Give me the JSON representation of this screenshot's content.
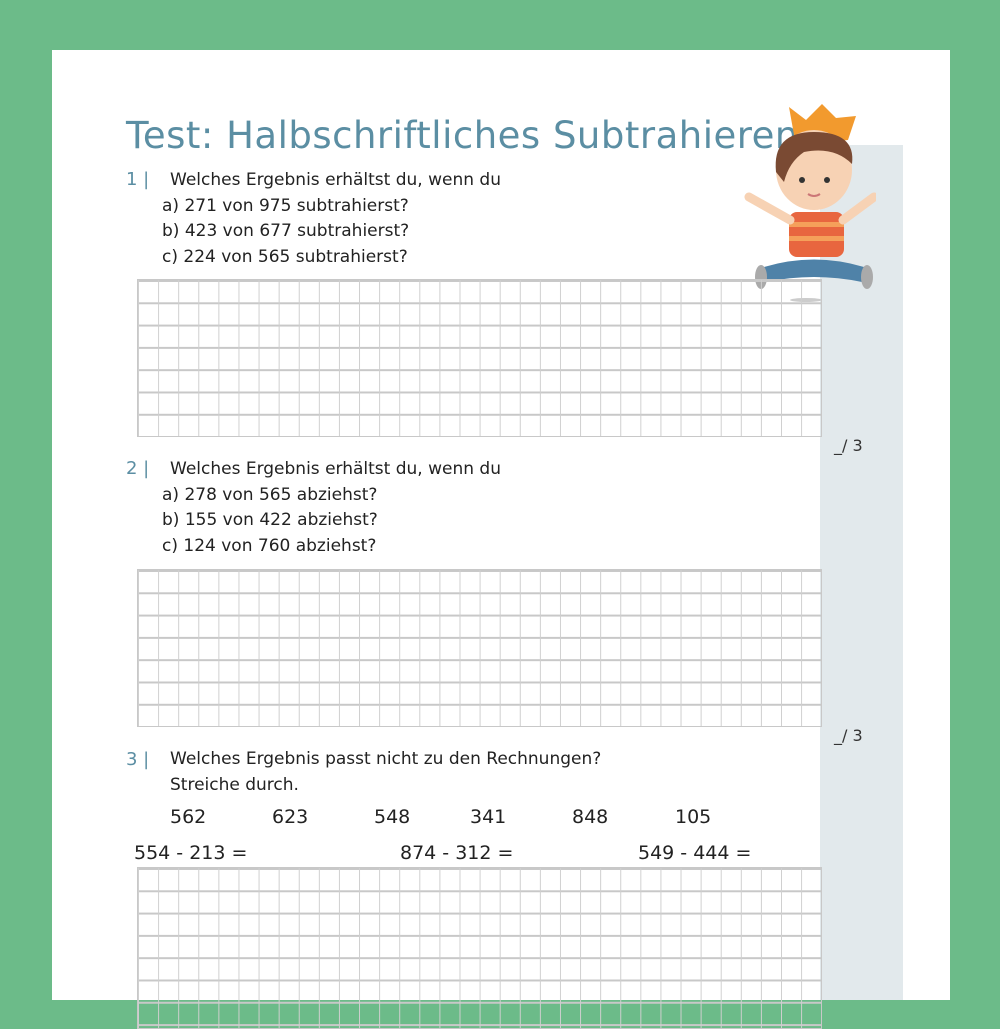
{
  "title": "Test: Halbschriftliches Subtrahieren",
  "tasks": [
    {
      "number": "1 |",
      "prompt": "Welches Ergebnis erhältst du, wenn du",
      "items": [
        "a) 271 von 975 subtrahierst?",
        "b) 423 von 677 subtrahierst?",
        "c) 224 von 565 subtrahierst?"
      ],
      "score": "_/ 3"
    },
    {
      "number": "2 |",
      "prompt": "Welches Ergebnis erhältst du, wenn du",
      "items": [
        "a) 278 von 565 abziehst?",
        "b) 155 von 422 abziehst?",
        "c) 124 von 760 abziehst?"
      ],
      "score": "_/ 3"
    },
    {
      "number": "3 |",
      "prompt": "Welches Ergebnis passt nicht zu den Rechnungen?",
      "prompt2": "Streiche durch.",
      "results": [
        "562",
        "623",
        "548",
        "341",
        "848",
        "105"
      ],
      "calculations": [
        "554 - 213 =",
        "874 - 312 =",
        "549 - 444 ="
      ]
    }
  ],
  "colors": {
    "border": "#6cbb89",
    "title": "#5b8ea3",
    "sidebar": "#e2e9ec"
  },
  "illustration": "boy-with-paper-crown"
}
